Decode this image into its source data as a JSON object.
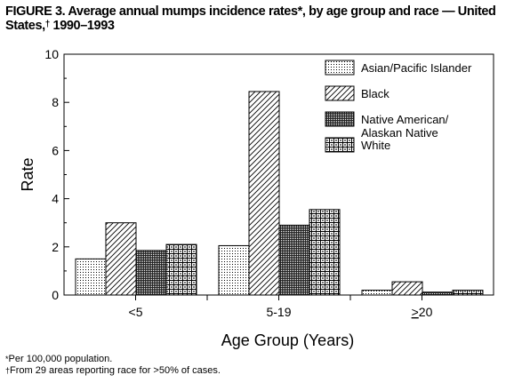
{
  "title": {
    "line1": "FIGURE 3. Average annual mumps incidence rates*, by age group and race — United",
    "line2_prefix": "States,",
    "line2_mark": "†",
    "line2_suffix": " 1990–1993"
  },
  "chart_data": {
    "type": "bar",
    "categories": [
      "<5",
      "5-19",
      "≥20"
    ],
    "series": [
      {
        "name": "Asian/Pacific Islander",
        "values": [
          1.5,
          2.05,
          0.2
        ],
        "pattern": "dots"
      },
      {
        "name": "Black",
        "values": [
          3.0,
          8.45,
          0.55
        ],
        "pattern": "hatch"
      },
      {
        "name": "Native American/\nAlaskan Native",
        "values": [
          1.85,
          2.9,
          0.12
        ],
        "pattern": "dense"
      },
      {
        "name": "White",
        "values": [
          2.1,
          3.55,
          0.2
        ],
        "pattern": "grid"
      }
    ],
    "ylabel": "Rate",
    "xlabel": "Age Group (Years)",
    "ylim": [
      0,
      10
    ],
    "yticks": [
      "0",
      "2",
      "4",
      "6",
      "8",
      "10"
    ],
    "legend_position": "top-right",
    "grid": false
  },
  "footnotes": [
    {
      "mark": "*",
      "text": "Per 100,000 population."
    },
    {
      "mark": "†",
      "text": "From 29 areas reporting race for >50% of cases."
    }
  ]
}
